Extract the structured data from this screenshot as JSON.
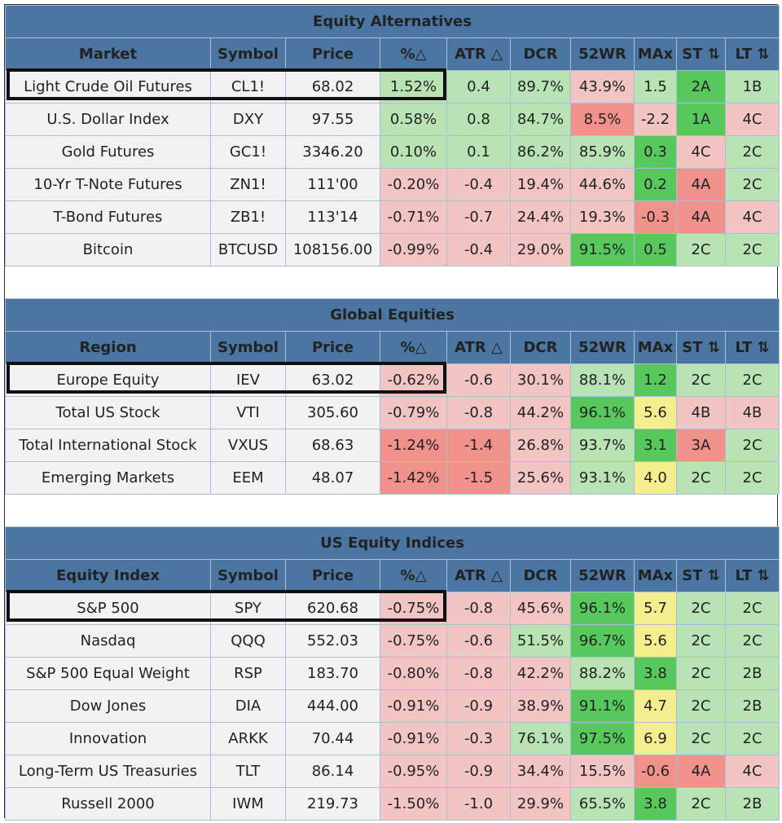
{
  "colors": {
    "header": "#4a76a1",
    "neutral": "#f2f2f2",
    "green_light": "#b9e3b4",
    "green_dark": "#57c85c",
    "red_light": "#f3c4c4",
    "red_dark": "#f0918c",
    "yellow": "#f4ee8e"
  },
  "sections": [
    {
      "title": "Equity Alternatives",
      "headers": [
        "Market",
        "Symbol",
        "Price",
        "%△",
        "ATR △",
        "DCR",
        "52WR",
        "MAx",
        "ST ⇅",
        "LT ⇅"
      ],
      "rows": [
        {
          "name": "Light Crude Oil Futures",
          "symbol": "CL1!",
          "price": "68.02",
          "pct": "1.52%",
          "atr": "0.4",
          "dcr": "89.7%",
          "wr": "43.9%",
          "max": "1.5",
          "st": "2A",
          "lt": "1B",
          "c": [
            "na",
            "na",
            "na",
            "pos1",
            "pos1",
            "pos1",
            "neg1",
            "pos1",
            "pos2",
            "pos1"
          ]
        },
        {
          "name": "U.S. Dollar Index",
          "symbol": "DXY",
          "price": "97.55",
          "pct": "0.58%",
          "atr": "0.8",
          "dcr": "84.7%",
          "wr": "8.5%",
          "max": "-2.2",
          "st": "1A",
          "lt": "4C",
          "c": [
            "na",
            "na",
            "na",
            "pos1",
            "pos1",
            "pos1",
            "neg2",
            "neg1",
            "pos2",
            "neg1"
          ]
        },
        {
          "name": "Gold Futures",
          "symbol": "GC1!",
          "price": "3346.20",
          "pct": "0.10%",
          "atr": "0.1",
          "dcr": "86.2%",
          "wr": "85.9%",
          "max": "0.3",
          "st": "4C",
          "lt": "2C",
          "c": [
            "na",
            "na",
            "na",
            "pos1",
            "pos1",
            "pos1",
            "pos1",
            "pos2",
            "neg1",
            "pos1"
          ]
        },
        {
          "name": "10-Yr T-Note Futures",
          "symbol": "ZN1!",
          "price": "111'00",
          "pct": "-0.20%",
          "atr": "-0.4",
          "dcr": "19.4%",
          "wr": "44.6%",
          "max": "0.2",
          "st": "4A",
          "lt": "2C",
          "c": [
            "na",
            "na",
            "na",
            "neg1",
            "neg1",
            "neg1",
            "neg1",
            "pos2",
            "neg2",
            "pos1"
          ]
        },
        {
          "name": "T-Bond Futures",
          "symbol": "ZB1!",
          "price": "113'14",
          "pct": "-0.71%",
          "atr": "-0.7",
          "dcr": "24.4%",
          "wr": "19.3%",
          "max": "-0.3",
          "st": "4A",
          "lt": "4C",
          "c": [
            "na",
            "na",
            "na",
            "neg1",
            "neg1",
            "neg1",
            "neg1",
            "neg2",
            "neg2",
            "neg1"
          ]
        },
        {
          "name": "Bitcoin",
          "symbol": "BTCUSD",
          "price": "108156.00",
          "pct": "-0.99%",
          "atr": "-0.4",
          "dcr": "29.0%",
          "wr": "91.5%",
          "max": "0.5",
          "st": "2C",
          "lt": "2C",
          "c": [
            "na",
            "na",
            "na",
            "neg1",
            "neg1",
            "neg1",
            "pos2",
            "pos2",
            "pos1",
            "pos1"
          ]
        }
      ]
    },
    {
      "title": "Global Equities",
      "headers": [
        "Region",
        "Symbol",
        "Price",
        "%△",
        "ATR △",
        "DCR",
        "52WR",
        "MAx",
        "ST ⇅",
        "LT ⇅"
      ],
      "rows": [
        {
          "name": "Europe Equity",
          "symbol": "IEV",
          "price": "63.02",
          "pct": "-0.62%",
          "atr": "-0.6",
          "dcr": "30.1%",
          "wr": "88.1%",
          "max": "1.2",
          "st": "2C",
          "lt": "2C",
          "c": [
            "na",
            "na",
            "na",
            "neg1",
            "neg1",
            "neg1",
            "pos1",
            "pos2",
            "pos1",
            "pos1"
          ]
        },
        {
          "name": "Total US Stock",
          "symbol": "VTI",
          "price": "305.60",
          "pct": "-0.79%",
          "atr": "-0.8",
          "dcr": "44.2%",
          "wr": "96.1%",
          "max": "5.6",
          "st": "4B",
          "lt": "4B",
          "c": [
            "na",
            "na",
            "na",
            "neg1",
            "neg1",
            "neg1",
            "pos2",
            "yel",
            "neg1",
            "neg1"
          ]
        },
        {
          "name": "Total International Stock",
          "symbol": "VXUS",
          "price": "68.63",
          "pct": "-1.24%",
          "atr": "-1.4",
          "dcr": "26.8%",
          "wr": "93.7%",
          "max": "3.1",
          "st": "3A",
          "lt": "2C",
          "c": [
            "na",
            "na",
            "na",
            "neg2",
            "neg2",
            "neg1",
            "pos1",
            "pos2",
            "neg2",
            "pos1"
          ]
        },
        {
          "name": "Emerging Markets",
          "symbol": "EEM",
          "price": "48.07",
          "pct": "-1.42%",
          "atr": "-1.5",
          "dcr": "25.6%",
          "wr": "93.1%",
          "max": "4.0",
          "st": "2C",
          "lt": "2C",
          "c": [
            "na",
            "na",
            "na",
            "neg2",
            "neg2",
            "neg1",
            "pos1",
            "yel",
            "pos1",
            "pos1"
          ]
        }
      ]
    },
    {
      "title": "US Equity Indices",
      "headers": [
        "Equity Index",
        "Symbol",
        "Price",
        "%△",
        "ATR △",
        "DCR",
        "52WR",
        "MAx",
        "ST ⇅",
        "LT ⇅"
      ],
      "rows": [
        {
          "name": "S&P 500",
          "symbol": "SPY",
          "price": "620.68",
          "pct": "-0.75%",
          "atr": "-0.8",
          "dcr": "45.6%",
          "wr": "96.1%",
          "max": "5.7",
          "st": "2C",
          "lt": "2C",
          "c": [
            "na",
            "na",
            "na",
            "neg1",
            "neg1",
            "neg1",
            "pos2",
            "yel",
            "pos1",
            "pos1"
          ]
        },
        {
          "name": "Nasdaq",
          "symbol": "QQQ",
          "price": "552.03",
          "pct": "-0.75%",
          "atr": "-0.6",
          "dcr": "51.5%",
          "wr": "96.7%",
          "max": "5.6",
          "st": "2C",
          "lt": "2C",
          "c": [
            "na",
            "na",
            "na",
            "neg1",
            "neg1",
            "pos1",
            "pos2",
            "yel",
            "pos1",
            "pos1"
          ]
        },
        {
          "name": "S&P 500 Equal Weight",
          "symbol": "RSP",
          "price": "183.70",
          "pct": "-0.80%",
          "atr": "-0.8",
          "dcr": "42.2%",
          "wr": "88.2%",
          "max": "3.8",
          "st": "2C",
          "lt": "2B",
          "c": [
            "na",
            "na",
            "na",
            "neg1",
            "neg1",
            "neg1",
            "pos1",
            "pos2",
            "pos1",
            "pos1"
          ]
        },
        {
          "name": "Dow Jones",
          "symbol": "DIA",
          "price": "444.00",
          "pct": "-0.91%",
          "atr": "-0.9",
          "dcr": "38.9%",
          "wr": "91.1%",
          "max": "4.7",
          "st": "2C",
          "lt": "2B",
          "c": [
            "na",
            "na",
            "na",
            "neg1",
            "neg1",
            "neg1",
            "pos2",
            "yel",
            "pos1",
            "pos1"
          ]
        },
        {
          "name": "Innovation",
          "symbol": "ARKK",
          "price": "70.44",
          "pct": "-0.91%",
          "atr": "-0.3",
          "dcr": "76.1%",
          "wr": "97.5%",
          "max": "6.9",
          "st": "2C",
          "lt": "2C",
          "c": [
            "na",
            "na",
            "na",
            "neg1",
            "neg1",
            "pos1",
            "pos2",
            "yel",
            "pos1",
            "pos1"
          ]
        },
        {
          "name": "Long-Term US Treasuries",
          "symbol": "TLT",
          "price": "86.14",
          "pct": "-0.95%",
          "atr": "-0.9",
          "dcr": "34.4%",
          "wr": "15.5%",
          "max": "-0.6",
          "st": "4A",
          "lt": "4C",
          "c": [
            "na",
            "na",
            "na",
            "neg1",
            "neg1",
            "neg1",
            "neg1",
            "neg2",
            "neg2",
            "neg1"
          ]
        },
        {
          "name": "Russell 2000",
          "symbol": "IWM",
          "price": "219.73",
          "pct": "-1.50%",
          "atr": "-1.0",
          "dcr": "29.9%",
          "wr": "65.5%",
          "max": "3.8",
          "st": "2C",
          "lt": "2B",
          "c": [
            "na",
            "na",
            "na",
            "neg1",
            "neg1",
            "neg1",
            "pos1",
            "pos2",
            "pos1",
            "pos1"
          ]
        }
      ]
    }
  ]
}
